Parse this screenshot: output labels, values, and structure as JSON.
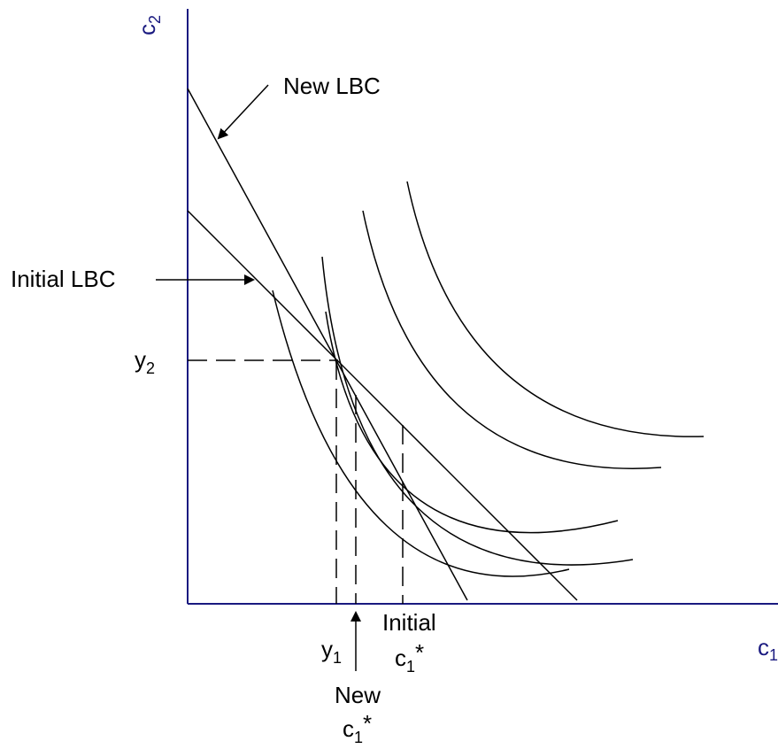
{
  "colors": {
    "axis": "#1a1a80",
    "ink": "#000000",
    "background": "#ffffff"
  },
  "axes": {
    "x": {
      "base": "c",
      "sub": "1"
    },
    "y": {
      "base": "c",
      "sub": "2"
    }
  },
  "labels": {
    "new_lbc": "New LBC",
    "initial_lbc": "Initial LBC",
    "y2": {
      "base": "y",
      "sub": "2"
    },
    "y1": {
      "base": "y",
      "sub": "1"
    },
    "initial_word": "Initial",
    "new_word": "New",
    "c1_star": {
      "base": "c",
      "sub": "1",
      "sup": "*"
    }
  }
}
